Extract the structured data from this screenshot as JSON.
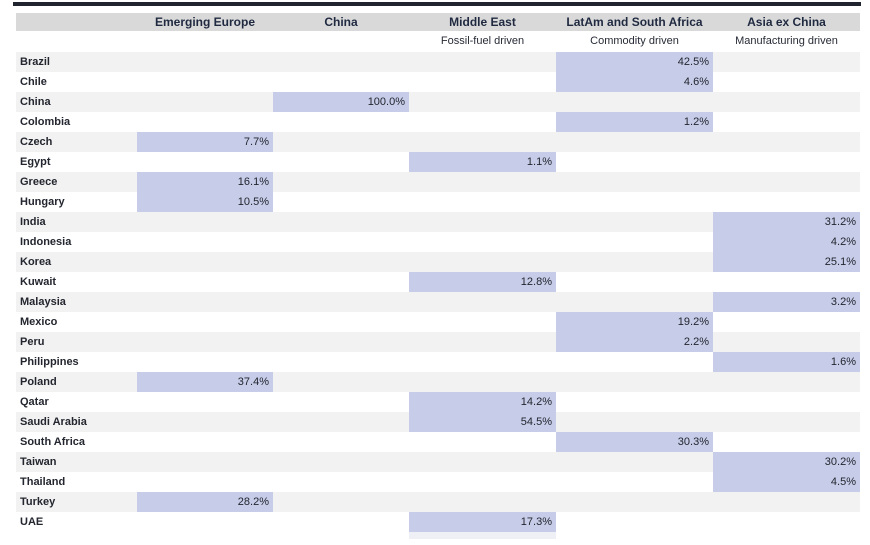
{
  "colors": {
    "top_accent_bar": "#20242f",
    "header_background": "#d9d9d9",
    "header_text": "#1f2940",
    "alt_row_background": "#f2f2f2",
    "highlight_cell": "#c7cce8",
    "body_text": "#23262f"
  },
  "chart_data": {
    "type": "table",
    "title": "",
    "columns": [
      "Emerging Europe",
      "China",
      "Middle East",
      "LatAm and South Africa",
      "Asia ex China"
    ],
    "column_subtitles": [
      "",
      "",
      "Fossil-fuel driven",
      "Commodity driven",
      "Manufacturing driven"
    ],
    "value_format": "percent_one_decimal",
    "rows": [
      {
        "country": "Brazil",
        "group": "LatAm and South Africa",
        "col": 3,
        "value": "42.5%",
        "weight_pct": 42.5
      },
      {
        "country": "Chile",
        "group": "LatAm and South Africa",
        "col": 3,
        "value": "4.6%",
        "weight_pct": 4.6
      },
      {
        "country": "China",
        "group": "China",
        "col": 1,
        "value": "100.0%",
        "weight_pct": 100.0
      },
      {
        "country": "Colombia",
        "group": "LatAm and South Africa",
        "col": 3,
        "value": "1.2%",
        "weight_pct": 1.2
      },
      {
        "country": "Czech",
        "group": "Emerging Europe",
        "col": 0,
        "value": "7.7%",
        "weight_pct": 7.7
      },
      {
        "country": "Egypt",
        "group": "Middle East",
        "col": 2,
        "value": "1.1%",
        "weight_pct": 1.1
      },
      {
        "country": "Greece",
        "group": "Emerging Europe",
        "col": 0,
        "value": "16.1%",
        "weight_pct": 16.1
      },
      {
        "country": "Hungary",
        "group": "Emerging Europe",
        "col": 0,
        "value": "10.5%",
        "weight_pct": 10.5
      },
      {
        "country": "India",
        "group": "Asia ex China",
        "col": 4,
        "value": "31.2%",
        "weight_pct": 31.2
      },
      {
        "country": "Indonesia",
        "group": "Asia ex China",
        "col": 4,
        "value": "4.2%",
        "weight_pct": 4.2
      },
      {
        "country": "Korea",
        "group": "Asia ex China",
        "col": 4,
        "value": "25.1%",
        "weight_pct": 25.1
      },
      {
        "country": "Kuwait",
        "group": "Middle East",
        "col": 2,
        "value": "12.8%",
        "weight_pct": 12.8
      },
      {
        "country": "Malaysia",
        "group": "Asia ex China",
        "col": 4,
        "value": "3.2%",
        "weight_pct": 3.2
      },
      {
        "country": "Mexico",
        "group": "LatAm and South Africa",
        "col": 3,
        "value": "19.2%",
        "weight_pct": 19.2
      },
      {
        "country": "Peru",
        "group": "LatAm and South Africa",
        "col": 3,
        "value": "2.2%",
        "weight_pct": 2.2
      },
      {
        "country": "Philippines",
        "group": "Asia ex China",
        "col": 4,
        "value": "1.6%",
        "weight_pct": 1.6
      },
      {
        "country": "Poland",
        "group": "Emerging Europe",
        "col": 0,
        "value": "37.4%",
        "weight_pct": 37.4
      },
      {
        "country": "Qatar",
        "group": "Middle East",
        "col": 2,
        "value": "14.2%",
        "weight_pct": 14.2
      },
      {
        "country": "Saudi Arabia",
        "group": "Middle East",
        "col": 2,
        "value": "54.5%",
        "weight_pct": 54.5
      },
      {
        "country": "South Africa",
        "group": "LatAm and South Africa",
        "col": 3,
        "value": "30.3%",
        "weight_pct": 30.3
      },
      {
        "country": "Taiwan",
        "group": "Asia ex China",
        "col": 4,
        "value": "30.2%",
        "weight_pct": 30.2
      },
      {
        "country": "Thailand",
        "group": "Asia ex China",
        "col": 4,
        "value": "4.5%",
        "weight_pct": 4.5
      },
      {
        "country": "Turkey",
        "group": "Emerging Europe",
        "col": 0,
        "value": "28.2%",
        "weight_pct": 28.2
      },
      {
        "country": "UAE",
        "group": "Middle East",
        "col": 2,
        "value": "17.3%",
        "weight_pct": 17.3
      }
    ]
  }
}
